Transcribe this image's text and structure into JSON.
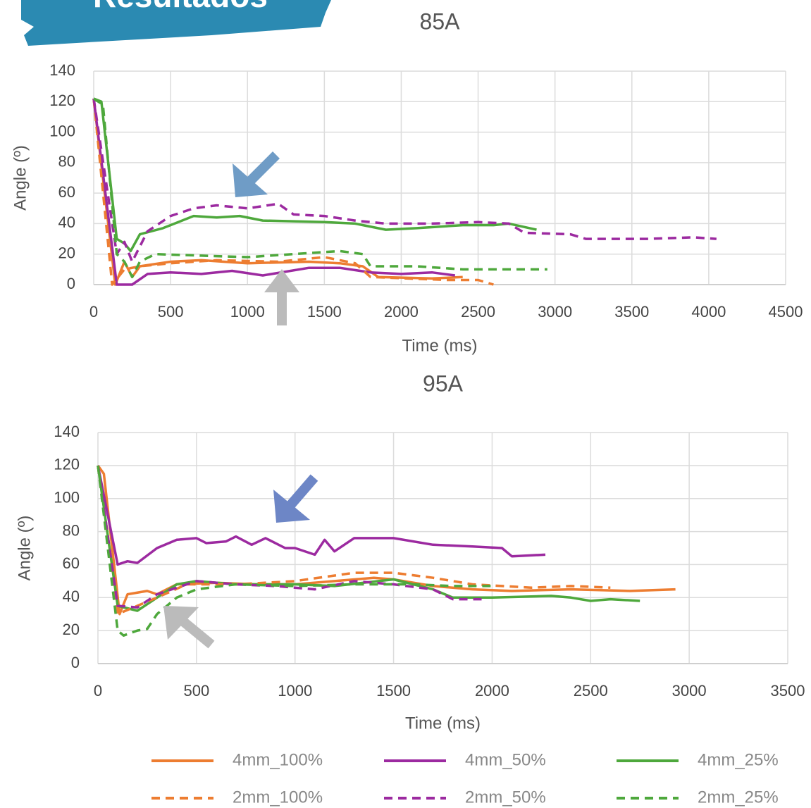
{
  "banner": "Resultados",
  "chart_data": [
    {
      "type": "line",
      "title": "85A",
      "x_label": "Time (ms)",
      "y_label": "Angle (º)",
      "xlim": [
        0,
        4500
      ],
      "xticks": [
        0,
        500,
        1000,
        1500,
        2000,
        2500,
        3000,
        3500,
        4000,
        4500
      ],
      "ylim": [
        0,
        140
      ],
      "yticks": [
        0,
        20,
        40,
        60,
        80,
        100,
        120,
        140
      ],
      "grid": true,
      "series": [
        {
          "color": "#ed7d31",
          "style": "solid",
          "x": [
            0,
            140,
            200,
            250,
            300,
            500,
            700,
            1000,
            1400,
            1600,
            1750,
            1850,
            2200,
            2400
          ],
          "values": [
            122,
            0,
            15,
            5,
            12,
            15,
            16,
            14,
            15,
            14,
            12,
            5,
            4,
            5
          ]
        },
        {
          "color": "#9c2aa0",
          "style": "solid",
          "x": [
            0,
            150,
            250,
            350,
            500,
            700,
            900,
            1100,
            1400,
            1600,
            1800,
            2000,
            2200,
            2350
          ],
          "values": [
            122,
            0,
            0,
            7,
            8,
            7,
            9,
            6,
            11,
            11,
            8,
            7,
            8,
            6
          ]
        },
        {
          "color": "#4ea83c",
          "style": "solid",
          "x": [
            0,
            50,
            150,
            200,
            240,
            300,
            450,
            650,
            800,
            950,
            1100,
            1500,
            1700,
            1900,
            2100,
            2400,
            2600,
            2700,
            2880
          ],
          "values": [
            122,
            120,
            30,
            27,
            22,
            33,
            37,
            45,
            44,
            45,
            42,
            41,
            40,
            36,
            37,
            39,
            39,
            40,
            36
          ]
        },
        {
          "color": "#ed7d31",
          "style": "dashed",
          "x": [
            0,
            120,
            200,
            300,
            500,
            800,
            1200,
            1500,
            1700,
            1800,
            2300,
            2500,
            2600
          ],
          "values": [
            122,
            0,
            10,
            12,
            14,
            16,
            15,
            18,
            14,
            5,
            3,
            3,
            0
          ]
        },
        {
          "color": "#9c2aa0",
          "style": "dashed",
          "x": [
            0,
            150,
            200,
            250,
            350,
            500,
            650,
            800,
            1000,
            1200,
            1300,
            1500,
            1700,
            1900,
            2200,
            2500,
            2700,
            2800,
            3100,
            3200,
            3600,
            3900,
            4050
          ],
          "values": [
            122,
            20,
            28,
            15,
            35,
            45,
            50,
            52,
            50,
            53,
            46,
            45,
            42,
            40,
            40,
            41,
            40,
            34,
            33,
            30,
            30,
            31,
            30
          ]
        },
        {
          "color": "#4ea83c",
          "style": "dashed",
          "x": [
            0,
            60,
            150,
            200,
            250,
            300,
            400,
            700,
            1000,
            1300,
            1600,
            1750,
            1800,
            2100,
            2400,
            2600,
            2950
          ],
          "values": [
            122,
            118,
            20,
            15,
            5,
            15,
            20,
            19,
            18,
            20,
            22,
            20,
            12,
            12,
            10,
            10,
            10
          ]
        }
      ]
    },
    {
      "type": "line",
      "title": "95A",
      "x_label": "Time (ms)",
      "y_label": "Angle (º)",
      "xlim": [
        0,
        3500
      ],
      "xticks": [
        0,
        500,
        1000,
        1500,
        2000,
        2500,
        3000,
        3500
      ],
      "ylim": [
        0,
        140
      ],
      "yticks": [
        0,
        20,
        40,
        60,
        80,
        100,
        120,
        140
      ],
      "grid": true,
      "series": [
        {
          "name": "4mm_100%",
          "color": "#ed7d31",
          "style": "solid",
          "x": [
            0,
            30,
            110,
            150,
            250,
            300,
            400,
            600,
            800,
            1000,
            1200,
            1400,
            1500,
            1700,
            1900,
            2100,
            2400,
            2700,
            2930
          ],
          "values": [
            120,
            115,
            30,
            42,
            44,
            42,
            48,
            49,
            48,
            48,
            50,
            52,
            51,
            47,
            45,
            44,
            45,
            44,
            45
          ]
        },
        {
          "name": "4mm_50%",
          "color": "#9c2aa0",
          "style": "solid",
          "x": [
            0,
            100,
            150,
            200,
            300,
            400,
            500,
            550,
            650,
            700,
            780,
            850,
            950,
            1000,
            1100,
            1150,
            1200,
            1300,
            1500,
            1700,
            1900,
            2050,
            2100,
            2270
          ],
          "values": [
            120,
            60,
            62,
            61,
            70,
            75,
            76,
            73,
            74,
            77,
            72,
            76,
            70,
            70,
            66,
            75,
            68,
            76,
            76,
            72,
            71,
            70,
            65,
            66
          ]
        },
        {
          "name": "4mm_25%",
          "color": "#4ea83c",
          "style": "solid",
          "x": [
            0,
            100,
            200,
            300,
            400,
            500,
            700,
            1000,
            1200,
            1500,
            1700,
            1800,
            2000,
            2300,
            2400,
            2500,
            2600,
            2750
          ],
          "values": [
            120,
            35,
            32,
            40,
            48,
            50,
            48,
            48,
            47,
            51,
            45,
            40,
            40,
            41,
            40,
            38,
            39,
            38
          ]
        },
        {
          "name": "2mm_100%",
          "color": "#ed7d31",
          "style": "dashed",
          "x": [
            0,
            100,
            200,
            300,
            450,
            700,
            1000,
            1300,
            1500,
            1700,
            1900,
            2200,
            2400,
            2600
          ],
          "values": [
            120,
            30,
            35,
            40,
            48,
            48,
            50,
            55,
            55,
            52,
            48,
            46,
            47,
            46
          ]
        },
        {
          "name": "2mm_50%",
          "color": "#9c2aa0",
          "style": "dashed",
          "x": [
            0,
            100,
            200,
            300,
            500,
            700,
            900,
            1100,
            1300,
            1500,
            1700,
            1800,
            1950
          ],
          "values": [
            120,
            35,
            34,
            42,
            50,
            48,
            47,
            45,
            50,
            48,
            45,
            39,
            39
          ]
        },
        {
          "name": "2mm_25%",
          "color": "#4ea83c",
          "style": "dashed",
          "x": [
            0,
            100,
            130,
            200,
            250,
            300,
            400,
            500,
            700,
            1000,
            1300,
            1600,
            1800,
            2000
          ],
          "values": [
            120,
            20,
            17,
            20,
            21,
            30,
            40,
            45,
            48,
            47,
            48,
            48,
            47,
            47
          ]
        }
      ]
    }
  ]
}
